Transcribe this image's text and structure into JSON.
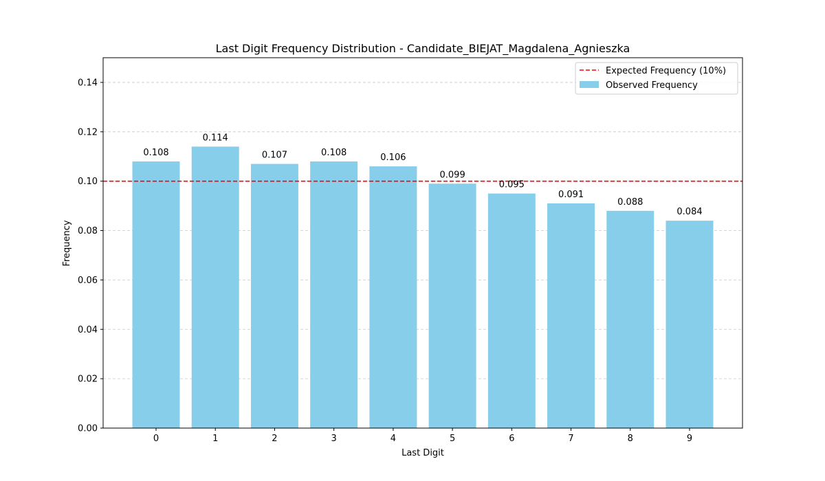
{
  "chart_data": {
    "type": "bar",
    "title": "Last Digit Frequency Distribution - Candidate_BIEJAT_Magdalena_Agnieszka",
    "xlabel": "Last Digit",
    "ylabel": "Frequency",
    "categories": [
      "0",
      "1",
      "2",
      "3",
      "4",
      "5",
      "6",
      "7",
      "8",
      "9"
    ],
    "series": [
      {
        "name": "Observed Frequency",
        "values": [
          0.108,
          0.114,
          0.107,
          0.108,
          0.106,
          0.099,
          0.095,
          0.091,
          0.088,
          0.084
        ],
        "labels": [
          "0.108",
          "0.114",
          "0.107",
          "0.108",
          "0.106",
          "0.099",
          "0.095",
          "0.091",
          "0.088",
          "0.084"
        ],
        "color": "#87ceeb"
      }
    ],
    "reference_line": {
      "name": "Expected Frequency (10%)",
      "value": 0.1,
      "color": "#ff0000",
      "style": "dashed"
    },
    "ylim": [
      0,
      0.15
    ],
    "yticks": [
      "0.00",
      "0.02",
      "0.04",
      "0.06",
      "0.08",
      "0.10",
      "0.12",
      "0.14"
    ],
    "grid": "y-dashed",
    "grid_color": "#c8c8c8",
    "legend_position": "top-right"
  }
}
